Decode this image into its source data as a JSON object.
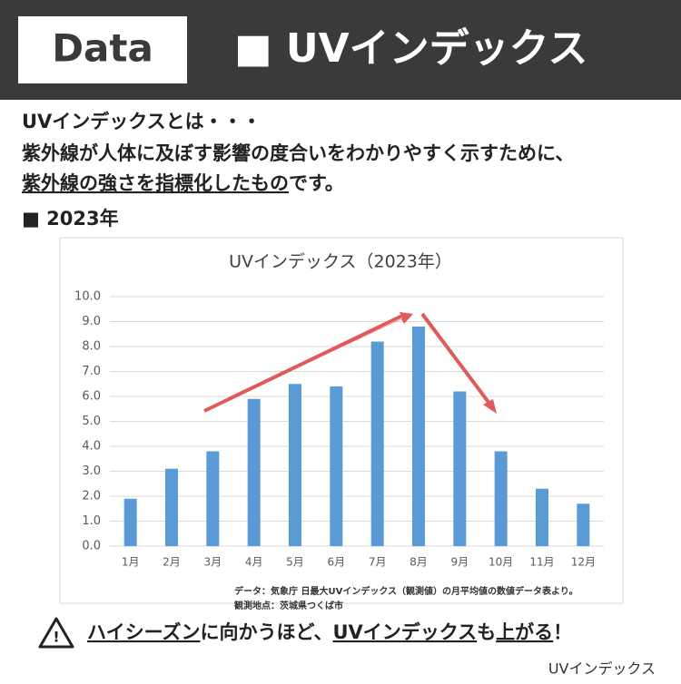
{
  "header": {
    "tag": "Data",
    "title": "■ UVインデックス"
  },
  "intro": {
    "line1": "UVインデックスとは・・・",
    "line2": "紫外線が人体に及ぼす影響の度合いをわかりやすく示すために、",
    "line3_underlined": "紫外線の強さを指標化したもの",
    "line3_rest": "です。"
  },
  "section": "■ 2023年",
  "chart_data": {
    "type": "bar",
    "title": "UVインデックス（2023年）",
    "categories": [
      "1月",
      "2月",
      "3月",
      "4月",
      "5月",
      "6月",
      "7月",
      "8月",
      "9月",
      "10月",
      "11月",
      "12月"
    ],
    "values": [
      1.9,
      3.1,
      3.8,
      5.9,
      6.5,
      6.4,
      8.2,
      8.8,
      6.2,
      3.8,
      2.3,
      1.7
    ],
    "color": "#5b9bd5",
    "ylim": [
      0,
      10
    ],
    "yticks": [
      {
        "value": 0,
        "label": "0.0"
      },
      {
        "value": 1,
        "label": "1.0"
      },
      {
        "value": 2,
        "label": "2.0"
      },
      {
        "value": 3,
        "label": "3.0"
      },
      {
        "value": 4,
        "label": "4.0"
      },
      {
        "value": 5,
        "label": "5.0"
      },
      {
        "value": 6,
        "label": "6.0"
      },
      {
        "value": 7,
        "label": "7.0"
      },
      {
        "value": 8,
        "label": "8.0"
      },
      {
        "value": 9,
        "label": "9.0"
      },
      {
        "value": 10,
        "label": "10.0"
      }
    ],
    "grid": true,
    "source": "データ：気象庁 日最大UVインデックス（観測値）の月平均値の数値データ表より。",
    "location": "観測地点：茨城県つくば市"
  },
  "footer": {
    "p1": "ハイシーズン",
    "p2": "に向かうほど、",
    "p3": "UVインデックス",
    "p4": "も",
    "p5": "上がる",
    "p6": "！"
  },
  "corner": "UVインデックス"
}
